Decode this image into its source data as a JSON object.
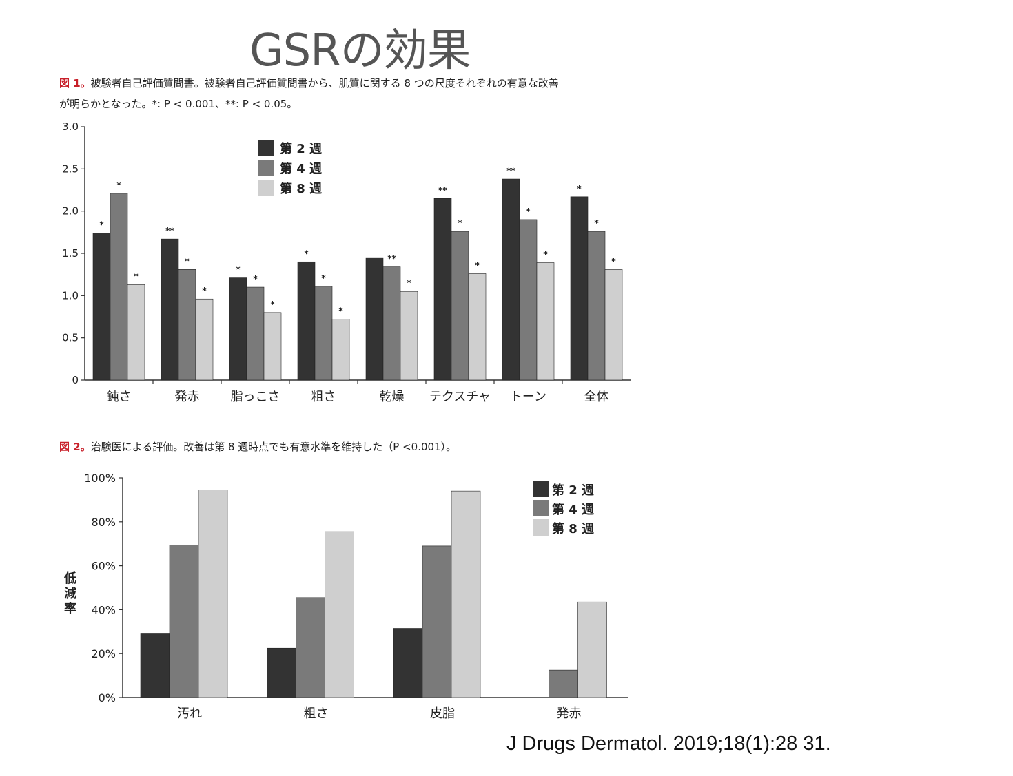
{
  "slide": {
    "title": "GSRの効果",
    "citation": "J Drugs Dermatol. 2019;18(1):28 31."
  },
  "fig1": {
    "label": "図 1。",
    "caption_line1": "被験者自己評価質問書。被験者自己評価質問書から、肌質に関する 8 つの尺度それぞれの有意な改善",
    "caption_line2": "が明らかとなった。*: P < 0.001、**: P < 0.05。"
  },
  "fig2": {
    "label": "図 2。",
    "caption": "治験医による評価。改善は第 8 週時点でも有意水準を維持した（P <0.001）。"
  },
  "colors": {
    "week2": "#333333",
    "week4": "#7a7a7a",
    "week8": "#cfcfcf"
  },
  "chart_data": [
    {
      "type": "bar",
      "categories": [
        "鈍さ",
        "発赤",
        "脂っこさ",
        "粗さ",
        "乾燥",
        "テクスチャ",
        "トーン",
        "全体"
      ],
      "series": [
        {
          "name": "第 2 週",
          "values": [
            1.74,
            1.67,
            1.21,
            1.4,
            1.45,
            2.15,
            2.38,
            2.17
          ],
          "markers": [
            "*",
            "**",
            "*",
            "*",
            "",
            "**",
            "**",
            "*"
          ]
        },
        {
          "name": "第 4 週",
          "values": [
            2.21,
            1.31,
            1.1,
            1.11,
            1.34,
            1.76,
            1.9,
            1.76
          ],
          "markers": [
            "*",
            "*",
            "*",
            "*",
            "**",
            "*",
            "*",
            "*"
          ]
        },
        {
          "name": "第 8 週",
          "values": [
            1.13,
            0.96,
            0.8,
            0.72,
            1.05,
            1.26,
            1.39,
            1.31
          ],
          "markers": [
            "*",
            "*",
            "*",
            "*",
            "*",
            "*",
            "*",
            "*"
          ]
        }
      ],
      "yticks": [
        "0",
        "0.5",
        "1.0",
        "1.5",
        "2.0",
        "2.5",
        "3.0"
      ],
      "ylim": [
        0,
        3
      ],
      "xlabel": "",
      "ylabel": "",
      "legend_position": "top-center"
    },
    {
      "type": "bar",
      "categories": [
        "汚れ",
        "粗さ",
        "皮脂",
        "発赤"
      ],
      "series": [
        {
          "name": "第 2 週",
          "values": [
            29,
            22.5,
            31.5,
            0
          ]
        },
        {
          "name": "第 4 週",
          "values": [
            69.5,
            45.5,
            69,
            12.5
          ]
        },
        {
          "name": "第 8 週",
          "values": [
            94.5,
            75.5,
            94,
            43.5
          ]
        }
      ],
      "yticks": [
        "0%",
        "20%",
        "40%",
        "60%",
        "80%",
        "100%"
      ],
      "ylim": [
        0,
        100
      ],
      "xlabel": "",
      "ylabel": "低減率",
      "legend_position": "top-right"
    }
  ]
}
